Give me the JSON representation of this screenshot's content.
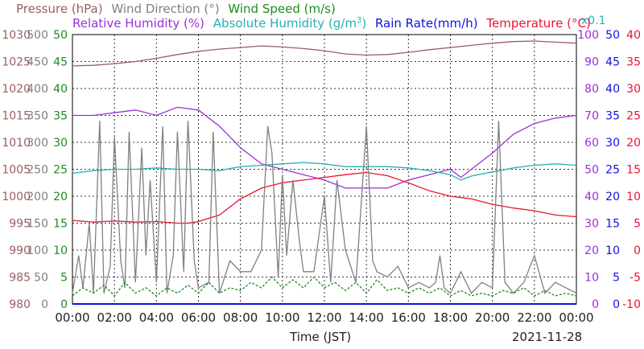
{
  "legend": {
    "pressure": {
      "label": "Pressure (hPa)",
      "color": "#9a5f5f"
    },
    "wind_direction": {
      "label": "Wind Direction (°)",
      "color": "#808080"
    },
    "wind_speed": {
      "label": "Wind Speed (m/s)",
      "color": "#1f8c1f"
    },
    "relative_humidity": {
      "label": "Relative Humidity (%)",
      "color": "#9b30d6"
    },
    "absolute_humidity_main": "Absolute Humidity (g/m",
    "absolute_humidity_sup": "3",
    "absolute_humidity_close": ")",
    "absolute_humidity_color": "#2ab0b0",
    "rain_rate": {
      "label": "Rain Rate(mm/h)",
      "color": "#1010e0"
    },
    "temperature": {
      "label": "Temperature (°C)",
      "color": "#ee1133"
    },
    "scale_note": "x0.1"
  },
  "footer": {
    "xlabel": "Time (JST)",
    "date": "2021-11-28"
  },
  "chart_data": {
    "type": "line",
    "x_ticks": [
      "00:00",
      "02:00",
      "04:00",
      "06:00",
      "08:00",
      "10:00",
      "12:00",
      "14:00",
      "16:00",
      "18:00",
      "20:00",
      "22:00",
      "00:00"
    ],
    "axes": {
      "pressure": {
        "ticks": [
          "1030",
          "1025",
          "1020",
          "1015",
          "1010",
          "1005",
          "1000",
          "995",
          "990",
          "985",
          "980"
        ],
        "range": [
          980,
          1030
        ],
        "color": "#9a5f5f"
      },
      "wind_direction": {
        "ticks": [
          "500",
          "450",
          "400",
          "350",
          "300",
          "250",
          "200",
          "150",
          "100",
          "50",
          "0"
        ],
        "range": [
          0,
          500
        ],
        "color": "#808080"
      },
      "wind_speed": {
        "ticks": [
          "50",
          "45",
          "40",
          "35",
          "30",
          "25",
          "20",
          "15",
          "10",
          "5",
          "0"
        ],
        "range": [
          0,
          50
        ],
        "color": "#1f8c1f"
      },
      "relative_humidity": {
        "ticks": [
          "100",
          "90",
          "80",
          "70",
          "60",
          "50",
          "40",
          "30",
          "20",
          "10",
          "0"
        ],
        "range": [
          0,
          100
        ],
        "color": "#9b30d6"
      },
      "rain_rate": {
        "ticks": [
          "50",
          "45",
          "40",
          "35",
          "30",
          "25",
          "20",
          "15",
          "10",
          "5",
          "0"
        ],
        "range": [
          0,
          50
        ],
        "color": "#1010e0"
      },
      "temperature": {
        "ticks": [
          "40",
          "35",
          "30",
          "25",
          "20",
          "15",
          "10",
          "5",
          "0",
          "-5",
          "-10"
        ],
        "range": [
          -10,
          40
        ],
        "color": "#ee1133"
      }
    },
    "grid": true,
    "series": [
      {
        "name": "Pressure (hPa)",
        "axis": "pressure",
        "color": "#9a5f5f",
        "points": [
          [
            0,
            1024.2
          ],
          [
            1,
            1024.3
          ],
          [
            2,
            1024.6
          ],
          [
            3,
            1025.0
          ],
          [
            4,
            1025.6
          ],
          [
            5,
            1026.3
          ],
          [
            6,
            1026.9
          ],
          [
            7,
            1027.3
          ],
          [
            8,
            1027.6
          ],
          [
            9,
            1027.9
          ],
          [
            10,
            1027.7
          ],
          [
            11,
            1027.4
          ],
          [
            12,
            1027.0
          ],
          [
            13,
            1026.4
          ],
          [
            14,
            1026.2
          ],
          [
            15,
            1026.3
          ],
          [
            16,
            1026.7
          ],
          [
            17,
            1027.2
          ],
          [
            18,
            1027.6
          ],
          [
            19,
            1028.0
          ],
          [
            20,
            1028.4
          ],
          [
            21,
            1028.7
          ],
          [
            22,
            1028.8
          ],
          [
            23,
            1028.6
          ],
          [
            24,
            1028.4
          ]
        ]
      },
      {
        "name": "Relative Humidity (%)",
        "axis": "relative_humidity",
        "color": "#9b30d6",
        "points": [
          [
            0,
            70
          ],
          [
            1,
            70
          ],
          [
            2,
            71
          ],
          [
            3,
            72
          ],
          [
            4,
            70
          ],
          [
            5,
            73
          ],
          [
            6,
            72
          ],
          [
            7,
            66
          ],
          [
            8,
            58
          ],
          [
            9,
            52
          ],
          [
            10,
            50
          ],
          [
            11,
            48
          ],
          [
            12,
            46
          ],
          [
            13,
            43
          ],
          [
            14,
            43
          ],
          [
            15,
            43
          ],
          [
            16,
            46
          ],
          [
            17,
            48
          ],
          [
            18,
            50
          ],
          [
            18.5,
            47
          ],
          [
            19,
            50
          ],
          [
            20,
            56
          ],
          [
            21,
            63
          ],
          [
            22,
            67
          ],
          [
            23,
            69
          ],
          [
            24,
            70
          ]
        ]
      },
      {
        "name": "Absolute Humidity",
        "axis": "relative_humidity",
        "color": "#2ab0b0",
        "points": [
          [
            0,
            48.5
          ],
          [
            1,
            49.5
          ],
          [
            2,
            50
          ],
          [
            3,
            50
          ],
          [
            4,
            50.5
          ],
          [
            5,
            50
          ],
          [
            6,
            50
          ],
          [
            7,
            49.5
          ],
          [
            8,
            51
          ],
          [
            9,
            51.5
          ],
          [
            10,
            52
          ],
          [
            11,
            52.5
          ],
          [
            12,
            52
          ],
          [
            13,
            51
          ],
          [
            14,
            51
          ],
          [
            15,
            51
          ],
          [
            16,
            50.5
          ],
          [
            17,
            49.5
          ],
          [
            18,
            48
          ],
          [
            18.5,
            46
          ],
          [
            19,
            47.5
          ],
          [
            20,
            49
          ],
          [
            21,
            50.5
          ],
          [
            22,
            51.5
          ],
          [
            23,
            52
          ],
          [
            24,
            51.5
          ]
        ]
      },
      {
        "name": "Temperature (°C)",
        "axis": "temperature",
        "color": "#ee1133",
        "points": [
          [
            0,
            5.5
          ],
          [
            1,
            5.2
          ],
          [
            2,
            5.4
          ],
          [
            3,
            5.2
          ],
          [
            4,
            5.3
          ],
          [
            5,
            5.0
          ],
          [
            5.5,
            5.0
          ],
          [
            6,
            5.3
          ],
          [
            7,
            6.5
          ],
          [
            8,
            9.5
          ],
          [
            9,
            11.5
          ],
          [
            10,
            12.5
          ],
          [
            11,
            13.0
          ],
          [
            12,
            13.5
          ],
          [
            13,
            14.0
          ],
          [
            14,
            14.4
          ],
          [
            15,
            13.8
          ],
          [
            16,
            12.5
          ],
          [
            17,
            11.0
          ],
          [
            18,
            10.0
          ],
          [
            19,
            9.5
          ],
          [
            20,
            8.5
          ],
          [
            21,
            7.8
          ],
          [
            22,
            7.3
          ],
          [
            23,
            6.5
          ],
          [
            24,
            6.2
          ]
        ]
      },
      {
        "name": "Wind Direction (°)",
        "axis": "wind_direction",
        "color": "#808080",
        "points": [
          [
            0,
            20
          ],
          [
            0.3,
            90
          ],
          [
            0.5,
            30
          ],
          [
            0.8,
            150
          ],
          [
            1,
            20
          ],
          [
            1.3,
            340
          ],
          [
            1.5,
            20
          ],
          [
            1.8,
            70
          ],
          [
            2,
            310
          ],
          [
            2.3,
            80
          ],
          [
            2.5,
            30
          ],
          [
            2.7,
            320
          ],
          [
            3,
            40
          ],
          [
            3.3,
            290
          ],
          [
            3.5,
            90
          ],
          [
            3.7,
            230
          ],
          [
            4,
            40
          ],
          [
            4.3,
            330
          ],
          [
            4.5,
            20
          ],
          [
            4.8,
            90
          ],
          [
            5,
            320
          ],
          [
            5.3,
            60
          ],
          [
            5.5,
            340
          ],
          [
            5.8,
            80
          ],
          [
            6,
            30
          ],
          [
            6.5,
            40
          ],
          [
            6.7,
            320
          ],
          [
            7,
            20
          ],
          [
            7.5,
            80
          ],
          [
            8,
            60
          ],
          [
            8.5,
            60
          ],
          [
            9,
            100
          ],
          [
            9.3,
            330
          ],
          [
            9.5,
            280
          ],
          [
            9.8,
            50
          ],
          [
            10,
            240
          ],
          [
            10.2,
            90
          ],
          [
            10.5,
            230
          ],
          [
            10.8,
            120
          ],
          [
            11,
            60
          ],
          [
            11.5,
            60
          ],
          [
            12,
            200
          ],
          [
            12.3,
            40
          ],
          [
            12.6,
            230
          ],
          [
            13,
            100
          ],
          [
            13.5,
            40
          ],
          [
            14,
            330
          ],
          [
            14.3,
            80
          ],
          [
            14.5,
            60
          ],
          [
            15,
            50
          ],
          [
            15.5,
            70
          ],
          [
            16,
            30
          ],
          [
            16.5,
            40
          ],
          [
            17,
            30
          ],
          [
            17.3,
            40
          ],
          [
            17.5,
            90
          ],
          [
            17.7,
            30
          ],
          [
            18,
            20
          ],
          [
            18.5,
            60
          ],
          [
            19,
            20
          ],
          [
            19.5,
            40
          ],
          [
            20,
            30
          ],
          [
            20.3,
            340
          ],
          [
            20.6,
            40
          ],
          [
            21,
            20
          ],
          [
            21.5,
            40
          ],
          [
            22,
            90
          ],
          [
            22.5,
            20
          ],
          [
            23,
            40
          ],
          [
            23.5,
            30
          ],
          [
            24,
            20
          ]
        ]
      },
      {
        "name": "Wind Speed (m/s)",
        "axis": "wind_speed",
        "color": "#1f8c1f",
        "points": [
          [
            0,
            1.5
          ],
          [
            0.5,
            3
          ],
          [
            1,
            2
          ],
          [
            1.5,
            3.5
          ],
          [
            2,
            1.5
          ],
          [
            2.5,
            4
          ],
          [
            3,
            2
          ],
          [
            3.5,
            3
          ],
          [
            4,
            1.5
          ],
          [
            4.5,
            3
          ],
          [
            5,
            2
          ],
          [
            5.5,
            3.5
          ],
          [
            6,
            2
          ],
          [
            6.5,
            4
          ],
          [
            7,
            2
          ],
          [
            7.5,
            3
          ],
          [
            8,
            2.5
          ],
          [
            8.5,
            4
          ],
          [
            9,
            3
          ],
          [
            9.5,
            5
          ],
          [
            10,
            3
          ],
          [
            10.5,
            4.5
          ],
          [
            11,
            3
          ],
          [
            11.5,
            5
          ],
          [
            12,
            3
          ],
          [
            12.5,
            4
          ],
          [
            13,
            2.5
          ],
          [
            13.5,
            4
          ],
          [
            14,
            2
          ],
          [
            14.5,
            4.5
          ],
          [
            15,
            2.5
          ],
          [
            15.5,
            3
          ],
          [
            16,
            2
          ],
          [
            16.5,
            3
          ],
          [
            17,
            2
          ],
          [
            17.5,
            3
          ],
          [
            18,
            1.5
          ],
          [
            18.5,
            2.5
          ],
          [
            19,
            1.5
          ],
          [
            19.5,
            2
          ],
          [
            20,
            1.5
          ],
          [
            20.5,
            2.5
          ],
          [
            21,
            2
          ],
          [
            21.5,
            3
          ],
          [
            22,
            1.5
          ],
          [
            22.5,
            2.5
          ],
          [
            23,
            1.5
          ],
          [
            23.5,
            2
          ],
          [
            24,
            1.5
          ]
        ]
      },
      {
        "name": "Rain Rate(mm/h)",
        "axis": "rain_rate",
        "color": "#1010e0",
        "points": [
          [
            0,
            0
          ],
          [
            24,
            0
          ]
        ]
      }
    ]
  }
}
